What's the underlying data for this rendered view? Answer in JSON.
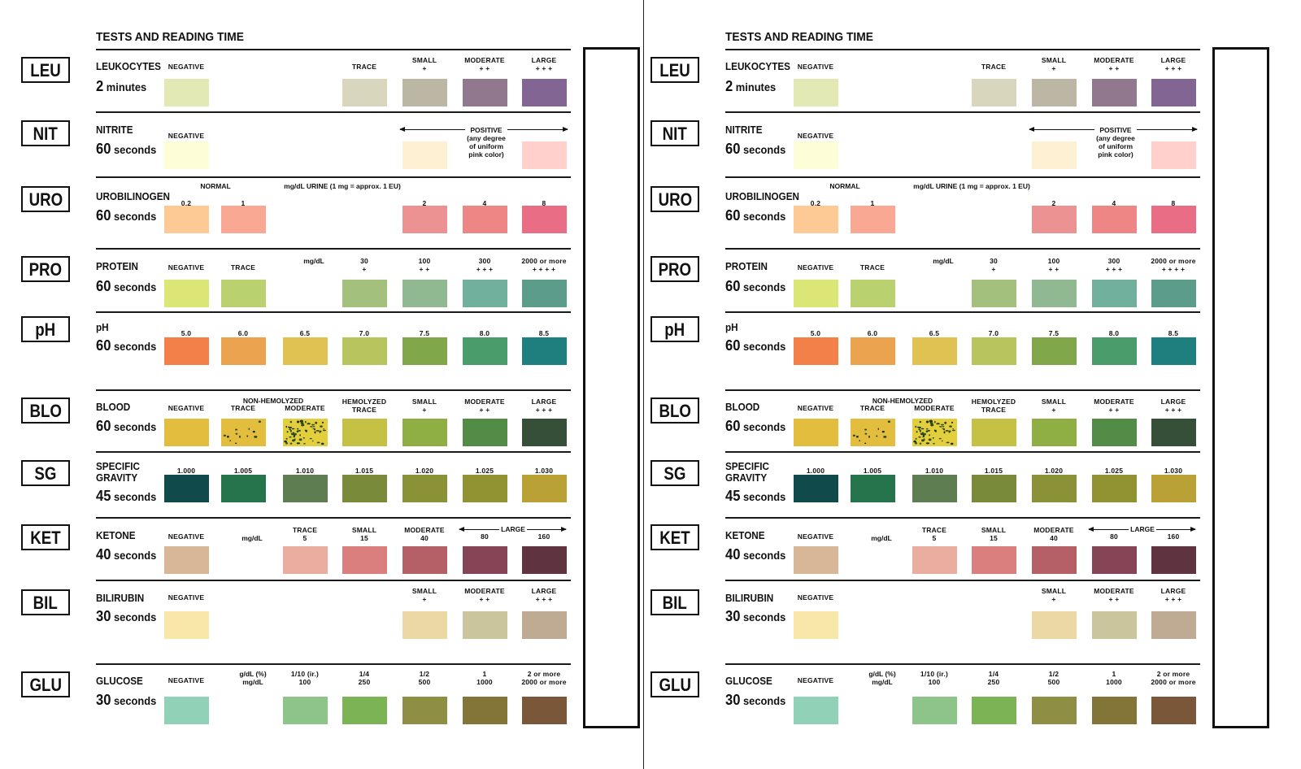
{
  "title": "TESTS AND READING TIME",
  "tests": [
    {
      "abbr": "LEU",
      "name": "LEUKOCYTES",
      "time_num": "2",
      "time_unit": "minutes",
      "labels": [
        "NEGATIVE",
        "",
        "",
        "TRACE",
        "SMALL\n+",
        "MODERATE\n+ +",
        "LARGE\n+ + +"
      ],
      "swatches": [
        "#e3e9b4",
        "",
        "",
        "#d8d6bc",
        "#bcb7a4",
        "#92788e",
        "#826593"
      ],
      "notes": []
    },
    {
      "abbr": "NIT",
      "name": "NITRITE",
      "time_num": "60",
      "time_unit": "seconds",
      "labels": [
        "NEGATIVE",
        "",
        "",
        "",
        "",
        "",
        ""
      ],
      "swatches": [
        "#fdfed7",
        "",
        "",
        "",
        "#fdf0d3",
        "",
        "#ffd0cc"
      ],
      "notes": [
        "POSITIVE",
        "(any degree\nof uniform\npink color)"
      ]
    },
    {
      "abbr": "URO",
      "name": "UROBILINOGEN",
      "time_num": "60",
      "time_unit": "seconds",
      "labels": [
        "0.2",
        "1",
        "",
        "",
        "2",
        "4",
        "8"
      ],
      "swatches": [
        "#fdca96",
        "#f9a893",
        "",
        "",
        "#ec9292",
        "#ee8686",
        "#e86d85"
      ],
      "notes": [
        "NORMAL",
        "mg/dL URINE (1 mg = approx. 1 EU)"
      ]
    },
    {
      "abbr": "PRO",
      "name": "PROTEIN",
      "time_num": "60",
      "time_unit": "seconds",
      "labels": [
        "NEGATIVE",
        "TRACE",
        "",
        "30\n+",
        "100\n+ +",
        "300\n+ + +",
        "2000 or more\n+ + + +"
      ],
      "swatches": [
        "#dce677",
        "#b9d26f",
        "",
        "#a3c07c",
        "#90b891",
        "#70b09c",
        "#5b9c8a"
      ],
      "notes": [
        "mg/dL"
      ]
    },
    {
      "abbr": "pH",
      "name": "pH",
      "time_num": "60",
      "time_unit": "seconds",
      "labels": [
        "5.0",
        "6.0",
        "6.5",
        "7.0",
        "7.5",
        "8.0",
        "8.5"
      ],
      "swatches": [
        "#f28048",
        "#eca350",
        "#dfc251",
        "#b8c45d",
        "#80a74a",
        "#4a9d6a",
        "#1e7f7e"
      ],
      "notes": []
    },
    {
      "abbr": "BLO",
      "name": "BLOOD",
      "time_num": "60",
      "time_unit": "seconds",
      "labels": [
        "NEGATIVE",
        "TRACE",
        "MODERATE",
        "HEMOLYZED\nTRACE",
        "SMALL\n+",
        "MODERATE\n+ +",
        "LARGE\n+ + +"
      ],
      "swatches": [
        "#e3bd3d",
        "#e3bd3d",
        "#e3cf3d",
        "#c4c145",
        "#8faf44",
        "#538c46",
        "#364f39"
      ],
      "notes": [
        "NON-HEMOLYZED"
      ]
    },
    {
      "abbr": "SG",
      "name": "SPECIFIC\nGRAVITY",
      "time_num": "45",
      "time_unit": "seconds",
      "labels": [
        "1.000",
        "1.005",
        "1.010",
        "1.015",
        "1.020",
        "1.025",
        "1.030"
      ],
      "swatches": [
        "#114a4a",
        "#26744c",
        "#5e7e51",
        "#7a8a3b",
        "#8b9136",
        "#919332",
        "#b9a136"
      ],
      "notes": []
    },
    {
      "abbr": "KET",
      "name": "KETONE",
      "time_num": "40",
      "time_unit": "seconds",
      "labels": [
        "NEGATIVE",
        "",
        "TRACE\n5",
        "SMALL\n15",
        "MODERATE\n40",
        "80",
        "160"
      ],
      "swatches": [
        "#d8b698",
        "",
        "#e9aea0",
        "#da7e7e",
        "#b55f67",
        "#864557",
        "#5f3340"
      ],
      "notes": [
        "mg/dL",
        "LARGE"
      ]
    },
    {
      "abbr": "BIL",
      "name": "BILIRUBIN",
      "time_num": "30",
      "time_unit": "seconds",
      "labels": [
        "NEGATIVE",
        "",
        "",
        "",
        "SMALL\n+",
        "MODERATE\n+ +",
        "LARGE\n+ + +"
      ],
      "swatches": [
        "#f8e7a8",
        "",
        "",
        "",
        "#ecd8a5",
        "#cbc59e",
        "#bfab94"
      ],
      "notes": []
    },
    {
      "abbr": "GLU",
      "name": "GLUCOSE",
      "time_num": "30",
      "time_unit": "seconds",
      "labels": [
        "NEGATIVE",
        "",
        "1/10 (ir.)\n100",
        "1/4\n250",
        "1/2\n500",
        "1\n1000",
        "2 or more\n2000 or more"
      ],
      "swatches": [
        "#91d1b7",
        "",
        "#8cc48a",
        "#7bb355",
        "#8e8e44",
        "#837537",
        "#7b573a"
      ],
      "notes": [
        "g/dL (%)\nmg/dL"
      ]
    }
  ]
}
